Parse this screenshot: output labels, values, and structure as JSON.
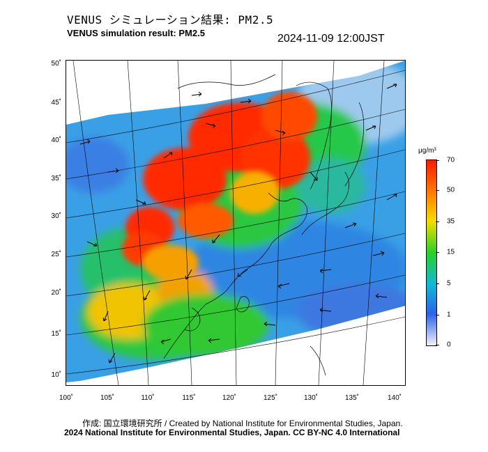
{
  "header": {
    "title_jp": "VENUS シミュレーション結果: PM2.5",
    "title_en": "VENUS simulation result: PM2.5",
    "timestamp": "2024-11-09 12:00JST"
  },
  "map": {
    "lat_ticks": [
      "50˚",
      "45˚",
      "40˚",
      "35˚",
      "30˚",
      "25˚",
      "20˚",
      "15˚",
      "10˚"
    ],
    "lon_ticks": [
      "100˚",
      "105˚",
      "110˚",
      "115˚",
      "120˚",
      "125˚",
      "130˚",
      "135˚",
      "140˚"
    ],
    "lat_range": [
      9,
      50.5
    ],
    "lon_range": [
      100,
      141.5
    ]
  },
  "colorbar": {
    "unit": "μg/m³",
    "tick_labels": [
      "70",
      "50",
      "35",
      "15",
      "5",
      "1",
      "0"
    ],
    "colors": [
      "#ff1a00",
      "#ff7a00",
      "#f5dd00",
      "#28d128",
      "#10b8d8",
      "#2a64e8",
      "#f2f0fa"
    ]
  },
  "footer": {
    "credit": "作成: 国立環境研究所 / Created by National Institute for Environmental Studies, Japan.",
    "license": "2024 National Institute for Environmental Studies, Japan. CC BY-NC 4.0 International"
  }
}
